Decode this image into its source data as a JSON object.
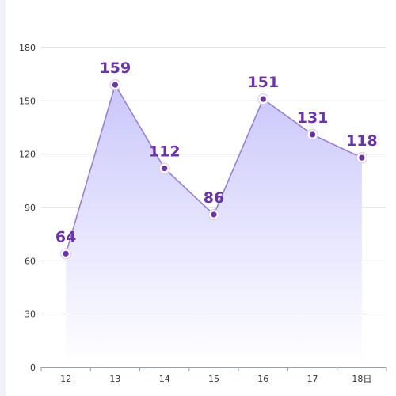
{
  "chart_data": {
    "type": "area",
    "categories": [
      "12",
      "13",
      "14",
      "15",
      "16",
      "17",
      "18日"
    ],
    "values": [
      64,
      159,
      112,
      86,
      151,
      131,
      118
    ],
    "title": "",
    "xlabel": "",
    "ylabel": "",
    "ylim": [
      0,
      180
    ],
    "yticks": [
      0,
      30,
      60,
      90,
      120,
      150,
      180
    ],
    "grid": true,
    "legend": "none",
    "colors": {
      "line": "#9b7fd0",
      "area_top": "#c9c6fb",
      "area_bottom": "#ffffff",
      "marker_fill": "#6b34a8",
      "marker_ring": "#ffffff",
      "label": "#6b34a8",
      "grid": "#c8ccd6",
      "axis": "#9aa0aa"
    }
  }
}
